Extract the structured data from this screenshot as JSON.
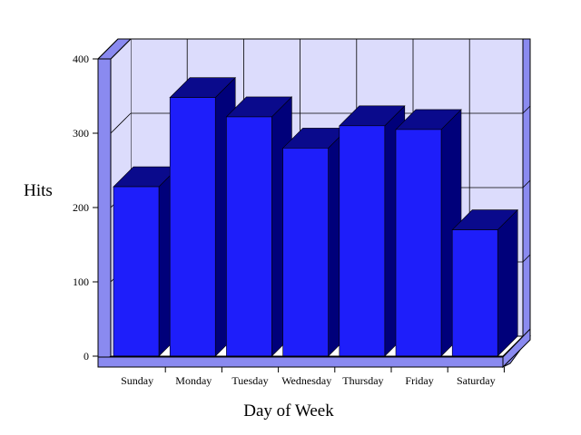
{
  "chart_data": {
    "type": "bar",
    "style": "3d",
    "title": "",
    "xlabel": "Day of Week",
    "ylabel": "Hits",
    "categories": [
      "Sunday",
      "Monday",
      "Tuesday",
      "Wednesday",
      "Thursday",
      "Friday",
      "Saturday"
    ],
    "values": [
      228,
      348,
      322,
      280,
      310,
      305,
      170
    ],
    "ylim": [
      0,
      400
    ],
    "yticks": [
      "0",
      "100",
      "200",
      "300",
      "400"
    ],
    "grid": true,
    "legend": "none",
    "colors": {
      "bar_front": "#1e1efa",
      "bar_side": "#00007a",
      "bar_top": "#0a0a8c",
      "wall": "#dcdcfc",
      "frame": "#8a8af0",
      "frame_edge": "#000000"
    }
  }
}
